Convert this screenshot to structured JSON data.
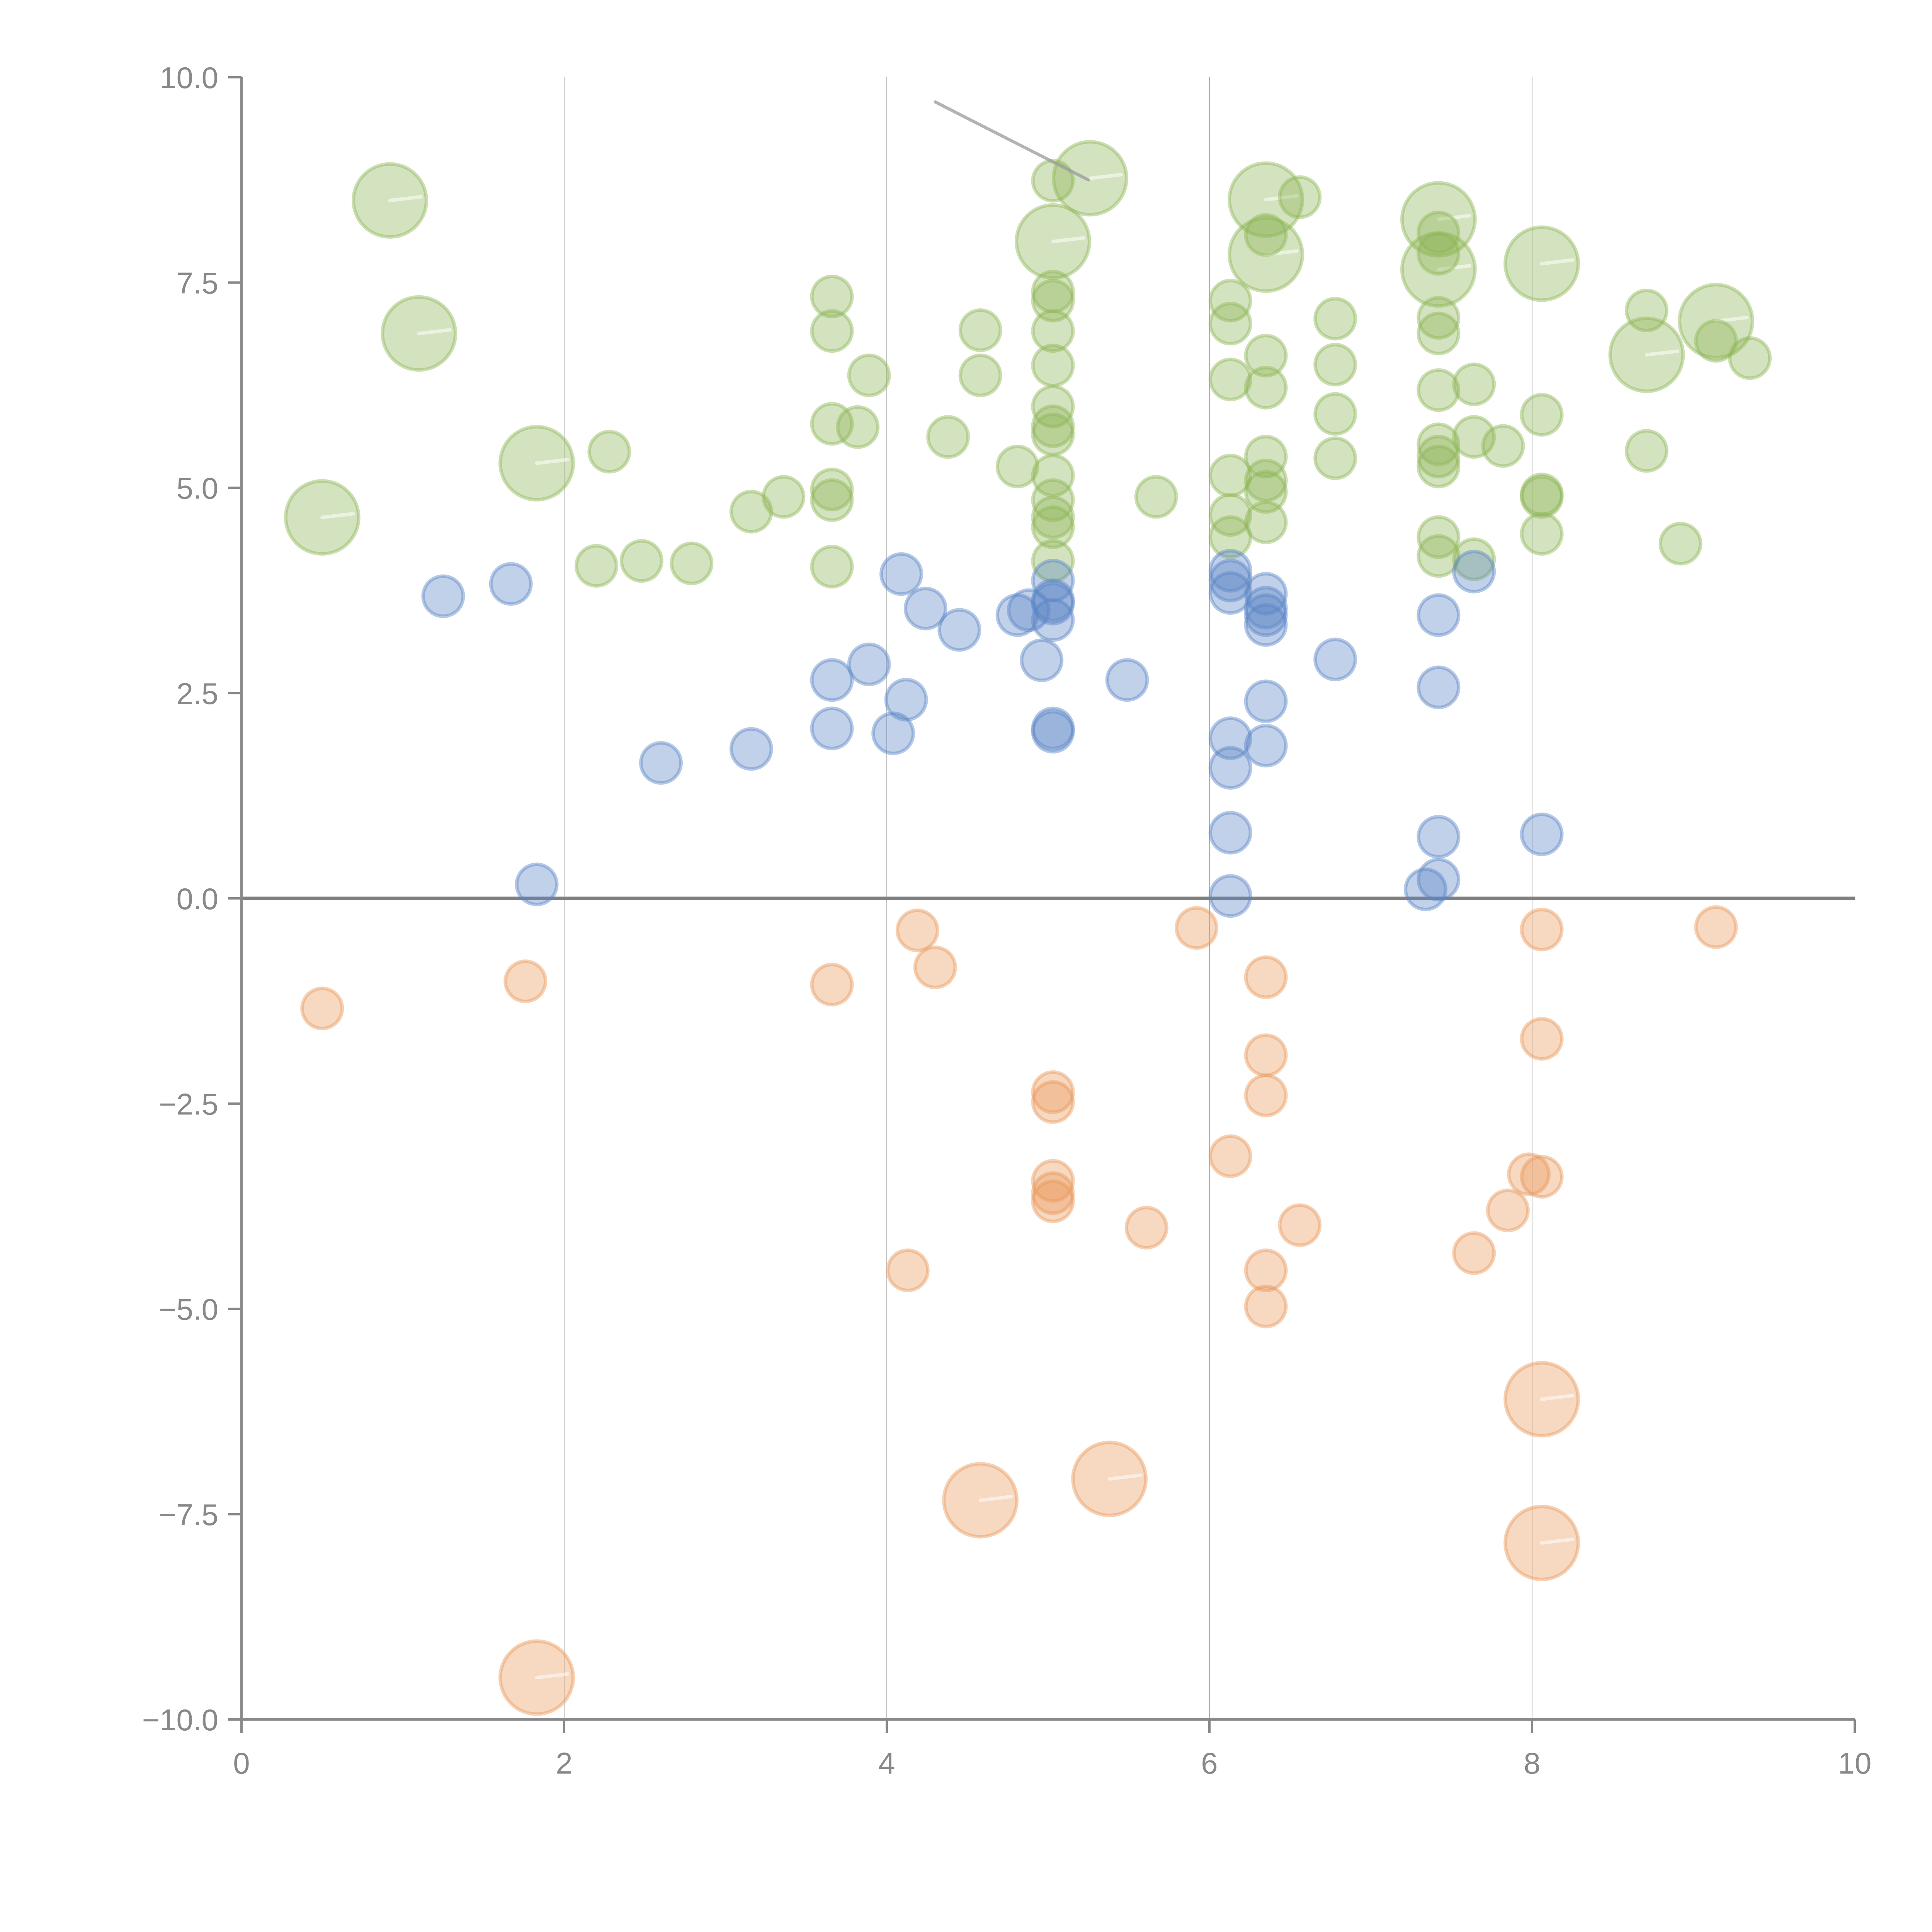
{
  "chart_data": {
    "type": "scatter",
    "subtype": "bubble",
    "title": "",
    "xlabel": "",
    "ylabel": "",
    "xlim": [
      0,
      10
    ],
    "ylim": [
      -10,
      10
    ],
    "x_ticks": [
      "0",
      "2",
      "4",
      "6",
      "8",
      "10"
    ],
    "x_tick_values": [
      0,
      2,
      4,
      6,
      8,
      10
    ],
    "y_ticks": [
      "10.0",
      "7.5",
      "5.0",
      "2.5",
      "0.0",
      "−2.5",
      "−5.0",
      "−7.5",
      "−10.0"
    ],
    "y_tick_values": [
      10,
      7.5,
      5,
      2.5,
      0,
      -2.5,
      -5,
      -7.5,
      -10
    ],
    "grid": "vertical-lines-at-major-x-ticks",
    "reference_line_y": 0,
    "legend": "none",
    "size_scale_note": "size 1 = small bubble, size 3.3 = large bubble (relative area)",
    "series": [
      {
        "name": "green",
        "color": "#8fb556",
        "points": [
          [
            0.92,
            8.5,
            3.3
          ],
          [
            1.1,
            6.88,
            3.3
          ],
          [
            0.5,
            4.64,
            3.3
          ],
          [
            1.83,
            5.3,
            3.3
          ],
          [
            2.28,
            5.44,
            1
          ],
          [
            2.2,
            4.05,
            1
          ],
          [
            2.48,
            4.11,
            1
          ],
          [
            2.79,
            4.08,
            1
          ],
          [
            3.16,
            4.71,
            1
          ],
          [
            3.36,
            4.89,
            1
          ],
          [
            3.66,
            7.33,
            1
          ],
          [
            3.66,
            6.91,
            1
          ],
          [
            3.89,
            6.37,
            1
          ],
          [
            3.66,
            5.78,
            1
          ],
          [
            3.82,
            5.74,
            1
          ],
          [
            3.66,
            4.98,
            1
          ],
          [
            3.66,
            4.85,
            1
          ],
          [
            3.66,
            4.04,
            1
          ],
          [
            4.38,
            5.62,
            1
          ],
          [
            4.58,
            6.92,
            1
          ],
          [
            4.58,
            6.37,
            1
          ],
          [
            4.81,
            5.26,
            1
          ],
          [
            5.03,
            8.74,
            1
          ],
          [
            5.26,
            8.77,
            3.3
          ],
          [
            5.03,
            8.0,
            3.3
          ],
          [
            5.03,
            7.39,
            1
          ],
          [
            5.03,
            7.28,
            1
          ],
          [
            5.03,
            6.91,
            1
          ],
          [
            5.03,
            6.49,
            1
          ],
          [
            5.03,
            5.99,
            1
          ],
          [
            5.03,
            5.75,
            1
          ],
          [
            5.03,
            5.65,
            1
          ],
          [
            5.03,
            5.15,
            1
          ],
          [
            5.03,
            4.85,
            1
          ],
          [
            5.03,
            4.64,
            1
          ],
          [
            5.03,
            4.52,
            1
          ],
          [
            5.03,
            4.11,
            1
          ],
          [
            5.67,
            4.89,
            1
          ],
          [
            6.13,
            7.28,
            1
          ],
          [
            6.13,
            7.0,
            1
          ],
          [
            6.13,
            6.32,
            1
          ],
          [
            6.13,
            5.15,
            1
          ],
          [
            6.13,
            4.67,
            1
          ],
          [
            6.13,
            4.4,
            1
          ],
          [
            6.35,
            8.51,
            3.3
          ],
          [
            6.35,
            7.84,
            3.3
          ],
          [
            6.35,
            8.08,
            1
          ],
          [
            6.56,
            8.54,
            1
          ],
          [
            6.35,
            6.61,
            1
          ],
          [
            6.35,
            6.22,
            1
          ],
          [
            6.35,
            5.38,
            1
          ],
          [
            6.35,
            5.09,
            1
          ],
          [
            6.35,
            4.95,
            1
          ],
          [
            6.35,
            4.58,
            1
          ],
          [
            6.78,
            7.06,
            1
          ],
          [
            6.78,
            6.5,
            1
          ],
          [
            6.78,
            5.9,
            1
          ],
          [
            6.78,
            5.36,
            1
          ],
          [
            7.42,
            8.27,
            3.3
          ],
          [
            7.42,
            7.66,
            3.3
          ],
          [
            7.42,
            8.11,
            1
          ],
          [
            7.42,
            7.85,
            1
          ],
          [
            7.42,
            7.07,
            1
          ],
          [
            7.42,
            6.88,
            1
          ],
          [
            7.42,
            6.19,
            1
          ],
          [
            7.42,
            5.53,
            1
          ],
          [
            7.42,
            5.38,
            1
          ],
          [
            7.42,
            5.26,
            1
          ],
          [
            7.42,
            4.4,
            1
          ],
          [
            7.42,
            4.17,
            1
          ],
          [
            7.64,
            6.26,
            1
          ],
          [
            7.64,
            5.62,
            1
          ],
          [
            7.64,
            4.13,
            1
          ],
          [
            7.82,
            5.51,
            1
          ],
          [
            8.06,
            7.73,
            3.3
          ],
          [
            8.06,
            5.89,
            1
          ],
          [
            8.06,
            4.92,
            1
          ],
          [
            8.06,
            4.89,
            1
          ],
          [
            8.06,
            4.44,
            1
          ],
          [
            8.71,
            7.16,
            1
          ],
          [
            8.71,
            6.62,
            3.3
          ],
          [
            8.71,
            5.45,
            1
          ],
          [
            9.14,
            7.03,
            3.3
          ],
          [
            9.14,
            6.79,
            1
          ],
          [
            9.35,
            6.58,
            1
          ],
          [
            8.92,
            4.32,
            1
          ]
        ]
      },
      {
        "name": "blue",
        "color": "#5b86c5",
        "points": [
          [
            1.25,
            3.68,
            1
          ],
          [
            1.67,
            3.83,
            1
          ],
          [
            1.83,
            0.17,
            1
          ],
          [
            2.6,
            1.65,
            1
          ],
          [
            3.16,
            1.82,
            1
          ],
          [
            3.66,
            2.66,
            1
          ],
          [
            3.66,
            2.07,
            1
          ],
          [
            3.89,
            2.85,
            1
          ],
          [
            4.04,
            2.01,
            1
          ],
          [
            4.09,
            3.95,
            1
          ],
          [
            4.12,
            2.42,
            1
          ],
          [
            4.24,
            3.53,
            1
          ],
          [
            4.45,
            3.27,
            1
          ],
          [
            4.81,
            3.45,
            1
          ],
          [
            4.88,
            3.51,
            1
          ],
          [
            4.96,
            2.9,
            1
          ],
          [
            5.03,
            3.87,
            1
          ],
          [
            5.03,
            3.63,
            1
          ],
          [
            5.03,
            3.59,
            1
          ],
          [
            5.03,
            3.39,
            1
          ],
          [
            5.03,
            2.07,
            1
          ],
          [
            5.03,
            2.03,
            1
          ],
          [
            5.49,
            2.66,
            1
          ],
          [
            6.13,
            3.99,
            1
          ],
          [
            6.13,
            3.87,
            1
          ],
          [
            6.13,
            3.72,
            1
          ],
          [
            6.13,
            1.95,
            1
          ],
          [
            6.13,
            1.59,
            1
          ],
          [
            6.13,
            0.8,
            1
          ],
          [
            6.13,
            0.03,
            1
          ],
          [
            6.35,
            3.71,
            1
          ],
          [
            6.35,
            3.54,
            1
          ],
          [
            6.35,
            3.45,
            1
          ],
          [
            6.35,
            3.33,
            1
          ],
          [
            6.35,
            2.4,
            1
          ],
          [
            6.35,
            1.86,
            1
          ],
          [
            6.78,
            2.91,
            1
          ],
          [
            7.42,
            3.45,
            1
          ],
          [
            7.42,
            2.57,
            1
          ],
          [
            7.42,
            0.75,
            1
          ],
          [
            7.42,
            0.23,
            1
          ],
          [
            7.34,
            0.11,
            1
          ],
          [
            7.64,
            3.98,
            1
          ],
          [
            8.06,
            0.78,
            1
          ]
        ]
      },
      {
        "name": "orange",
        "color": "#e9995c",
        "points": [
          [
            0.5,
            -1.34,
            1
          ],
          [
            1.76,
            -1.01,
            1
          ],
          [
            1.83,
            -9.49,
            3.3
          ],
          [
            3.66,
            -1.05,
            1
          ],
          [
            4.19,
            -0.39,
            1
          ],
          [
            4.3,
            -0.84,
            1
          ],
          [
            4.13,
            -4.53,
            1
          ],
          [
            4.58,
            -7.33,
            3.3
          ],
          [
            5.03,
            -2.36,
            1
          ],
          [
            5.03,
            -2.48,
            1
          ],
          [
            5.03,
            -3.44,
            1
          ],
          [
            5.03,
            -3.59,
            1
          ],
          [
            5.03,
            -3.69,
            1
          ],
          [
            5.38,
            -7.07,
            3.3
          ],
          [
            5.61,
            -4.01,
            1
          ],
          [
            5.92,
            -0.36,
            1
          ],
          [
            6.13,
            -3.14,
            1
          ],
          [
            6.35,
            -0.96,
            1
          ],
          [
            6.35,
            -1.91,
            1
          ],
          [
            6.35,
            -2.4,
            1
          ],
          [
            6.35,
            -4.53,
            1
          ],
          [
            6.35,
            -4.97,
            1
          ],
          [
            6.56,
            -3.98,
            1
          ],
          [
            7.64,
            -4.32,
            1
          ],
          [
            7.85,
            -3.8,
            1
          ],
          [
            7.98,
            -3.36,
            1
          ],
          [
            8.06,
            -3.39,
            1
          ],
          [
            8.06,
            -0.38,
            1
          ],
          [
            8.06,
            -1.71,
            1
          ],
          [
            8.06,
            -6.1,
            3.3
          ],
          [
            8.06,
            -7.85,
            3.3
          ],
          [
            9.14,
            -0.35,
            1
          ]
        ]
      }
    ],
    "annotations": [
      {
        "type": "leader-line",
        "from": [
          4.3,
          9.7
        ],
        "to": [
          5.25,
          8.75
        ],
        "color": "#999999"
      }
    ]
  }
}
